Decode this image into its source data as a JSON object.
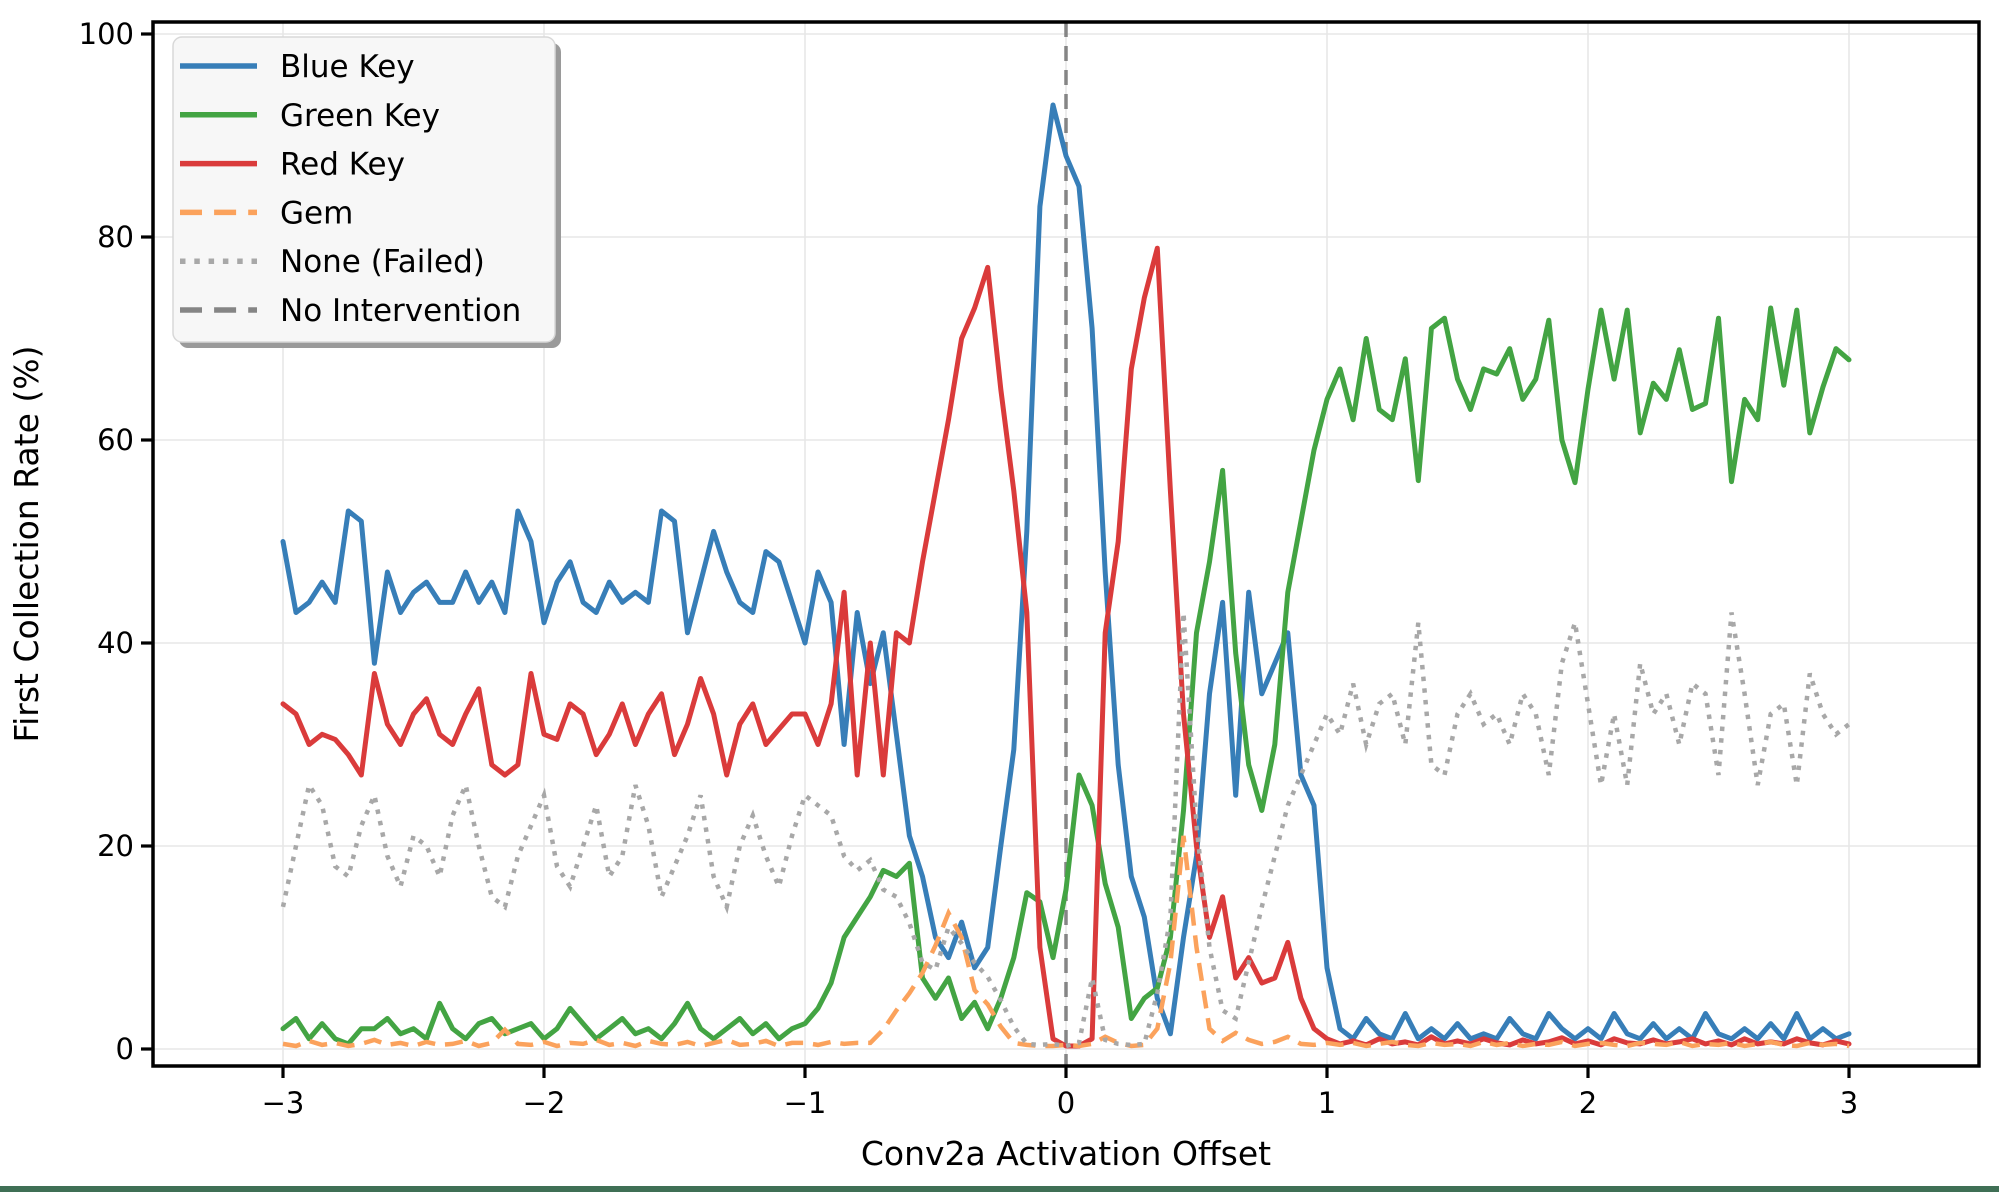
{
  "figure": {
    "background": "#ffffff",
    "footer_bar_color": "#3f6f55"
  },
  "chart_data": {
    "type": "line",
    "title": "",
    "xlabel": "Conv2a Activation Offset",
    "ylabel": "First Collection Rate (%)",
    "xlim": [
      -3.5,
      3.5
    ],
    "ylim": [
      -1.7,
      101.2
    ],
    "xticks": [
      -3,
      -2,
      -1,
      0,
      1,
      2,
      3
    ],
    "xtick_labels": [
      "−3",
      "−2",
      "−1",
      "0",
      "1",
      "2",
      "3"
    ],
    "yticks": [
      0,
      20,
      40,
      60,
      80,
      100
    ],
    "ytick_labels": [
      "0",
      "20",
      "40",
      "60",
      "80",
      "100"
    ],
    "grid": true,
    "grid_color": "#e7e7e7",
    "legend_position": "upper left",
    "legend_entries": [
      "Blue Key",
      "Green Key",
      "Red Key",
      "Gem",
      "None (Failed)",
      "No Intervention"
    ],
    "vline": {
      "x": 0,
      "label": "No Intervention",
      "color": "#858585",
      "style": "dashed"
    },
    "x": [
      -3,
      -2.95,
      -2.9,
      -2.85,
      -2.8,
      -2.75,
      -2.7,
      -2.65,
      -2.6,
      -2.55,
      -2.5,
      -2.45,
      -2.4,
      -2.35,
      -2.3,
      -2.25,
      -2.2,
      -2.15,
      -2.1,
      -2.05,
      -2,
      -1.95,
      -1.9,
      -1.85,
      -1.8,
      -1.75,
      -1.7,
      -1.65,
      -1.6,
      -1.55,
      -1.5,
      -1.45,
      -1.4,
      -1.35,
      -1.3,
      -1.25,
      -1.2,
      -1.15,
      -1.1,
      -1.05,
      -1,
      -0.95,
      -0.9,
      -0.85,
      -0.8,
      -0.75,
      -0.7,
      -0.65,
      -0.6,
      -0.55,
      -0.5,
      -0.45,
      -0.4,
      -0.35,
      -0.3,
      -0.25,
      -0.2,
      -0.15,
      -0.1,
      -0.05,
      0,
      0.05,
      0.1,
      0.15,
      0.2,
      0.25,
      0.3,
      0.35,
      0.4,
      0.45,
      0.5,
      0.55,
      0.6,
      0.65,
      0.7,
      0.75,
      0.8,
      0.85,
      0.9,
      0.95,
      1,
      1.05,
      1.1,
      1.15,
      1.2,
      1.25,
      1.3,
      1.35,
      1.4,
      1.45,
      1.5,
      1.55,
      1.6,
      1.65,
      1.7,
      1.75,
      1.8,
      1.85,
      1.9,
      1.95,
      2,
      2.05,
      2.1,
      2.15,
      2.2,
      2.25,
      2.3,
      2.35,
      2.4,
      2.45,
      2.5,
      2.55,
      2.6,
      2.65,
      2.7,
      2.75,
      2.8,
      2.85,
      2.9,
      2.95,
      3
    ],
    "series": [
      {
        "name": "Blue Key",
        "color": "#377eb8",
        "style": "solid",
        "values": [
          50,
          43,
          44,
          46,
          44,
          53,
          52,
          38,
          47,
          43,
          45,
          46,
          44,
          44,
          47,
          44,
          46,
          43,
          53,
          50,
          42,
          46,
          48,
          44,
          43,
          46,
          44,
          45,
          44,
          53,
          52,
          41,
          46,
          51,
          47,
          44,
          43,
          49,
          48,
          44,
          40,
          47,
          44,
          30,
          43,
          36,
          41,
          31,
          21,
          17,
          11,
          9,
          12.5,
          8,
          10,
          20,
          29.5,
          51,
          83,
          93,
          88,
          85,
          71,
          47,
          28,
          17,
          13,
          5,
          1.5,
          11,
          19,
          35,
          44,
          25,
          45,
          35,
          38,
          41,
          27,
          24,
          8,
          2,
          1,
          3,
          1.5,
          1,
          3.5,
          1,
          2,
          1,
          2.5,
          1,
          1.5,
          1,
          3,
          1.5,
          1,
          3.5,
          2,
          1,
          2,
          1,
          3.5,
          1.5,
          1,
          2.5,
          1,
          2,
          1,
          3.5,
          1.5,
          1,
          2,
          1,
          2.5,
          1,
          3.5,
          1,
          2,
          1,
          1.5
        ]
      },
      {
        "name": "Green Key",
        "color": "#43a443",
        "style": "solid",
        "values": [
          2,
          3,
          1,
          2.5,
          1,
          0.5,
          2,
          2,
          3,
          1.5,
          2,
          1,
          4.5,
          2,
          1,
          2.5,
          3,
          1.5,
          2,
          2.5,
          1,
          2,
          4,
          2.5,
          1,
          2,
          3,
          1.5,
          2,
          1,
          2.5,
          4.5,
          2,
          1,
          2,
          3,
          1.5,
          2.5,
          1,
          2,
          2.5,
          4,
          6.5,
          11,
          13,
          15,
          17.6,
          17,
          18.3,
          7,
          5,
          7,
          3,
          4.6,
          2,
          5,
          9,
          15.4,
          14.5,
          9,
          15.7,
          27,
          24,
          16.3,
          12,
          3,
          5,
          6,
          11,
          23.5,
          41,
          48,
          57,
          39,
          28,
          23.5,
          30,
          45,
          52,
          59,
          64,
          67,
          62,
          70,
          63,
          62,
          68,
          56,
          71,
          72,
          66,
          63,
          67,
          66.5,
          69,
          64,
          66,
          71.8,
          60,
          55.8,
          65,
          72.8,
          66,
          72.8,
          60.7,
          65.6,
          64,
          68.9,
          63,
          63.6,
          72,
          55.9,
          64,
          62,
          73,
          65.4,
          72.8,
          60.7,
          65.2,
          69,
          67.9
        ]
      },
      {
        "name": "Red Key",
        "color": "#da3b3b",
        "style": "solid",
        "values": [
          34,
          33,
          30,
          31,
          30.5,
          29,
          27,
          37,
          32,
          30,
          33,
          34.5,
          31,
          30,
          33,
          35.5,
          28,
          27,
          28,
          37,
          31,
          30.5,
          34,
          33,
          29,
          31,
          34,
          30,
          33,
          35,
          29,
          32,
          36.5,
          33,
          27,
          32,
          34,
          30,
          31.5,
          33,
          33,
          30,
          34,
          45,
          27,
          40,
          27,
          41,
          40,
          48,
          55,
          62,
          70,
          73,
          77,
          65,
          55,
          43,
          10,
          1,
          0.3,
          0.3,
          1,
          41,
          50,
          67,
          74,
          78.9,
          55,
          33,
          20,
          11,
          15,
          7,
          9,
          6.5,
          7,
          10.5,
          5,
          2,
          1,
          0.5,
          0.8,
          0.4,
          1,
          0.5,
          0.7,
          0.4,
          1.2,
          0.5,
          0.8,
          0.5,
          1,
          0.6,
          0.4,
          0.9,
          0.5,
          0.7,
          1.1,
          0.5,
          0.8,
          0.4,
          1,
          0.6,
          0.5,
          0.9,
          0.5,
          0.7,
          1,
          0.5,
          0.8,
          0.4,
          1,
          0.5,
          0.7,
          0.5,
          1,
          0.6,
          0.4,
          0.8,
          0.5
        ]
      },
      {
        "name": "Gem",
        "color": "#fba25c",
        "style": "dashed",
        "values": [
          0.5,
          0.3,
          0.8,
          0.4,
          0.6,
          0.3,
          0.5,
          0.9,
          0.4,
          0.6,
          0.3,
          0.7,
          0.4,
          0.5,
          0.8,
          0.3,
          0.6,
          1.9,
          0.5,
          0.4,
          0.7,
          0.3,
          0.6,
          0.5,
          0.9,
          0.4,
          0.6,
          0.3,
          0.8,
          0.5,
          0.4,
          0.7,
          0.3,
          0.6,
          0.9,
          0.4,
          0.5,
          0.8,
          0.3,
          0.6,
          0.6,
          0.4,
          0.7,
          0.5,
          0.6,
          0.6,
          1.9,
          3.8,
          5.5,
          7.5,
          10.2,
          13.4,
          11,
          5.8,
          4.4,
          2.2,
          0.6,
          0.4,
          0.3,
          0.3,
          0.4,
          0.3,
          0.5,
          1.2,
          0.6,
          0.3,
          0.4,
          2,
          8.5,
          21,
          10,
          2,
          0.8,
          1.6,
          0.9,
          0.5,
          0.7,
          1.2,
          0.5,
          0.4,
          0.6,
          0.4,
          0.6,
          0.3,
          0.5,
          0.7,
          0.4,
          0.3,
          0.6,
          0.4,
          0.5,
          0.3,
          0.7,
          0.4,
          0.6,
          0.3,
          0.5,
          0.4,
          0.7,
          0.3,
          0.5,
          0.6,
          0.4,
          0.3,
          0.6,
          0.5,
          0.4,
          0.7,
          0.3,
          0.5,
          0.4,
          0.6,
          0.3,
          0.5,
          0.7,
          0.4,
          0.3,
          0.6,
          0.4,
          0.5,
          0.3
        ]
      },
      {
        "name": "None (Failed)",
        "color": "#a8a8a8",
        "style": "dotted",
        "values": [
          14,
          20,
          26,
          24,
          18,
          17,
          22,
          25,
          19,
          16,
          21,
          20,
          17,
          23,
          26,
          20,
          15,
          14,
          19,
          22,
          25,
          18,
          16,
          20,
          24,
          17,
          19,
          26,
          22,
          15,
          18,
          21,
          25,
          17,
          14,
          20,
          23,
          19,
          16,
          21,
          25,
          24,
          23,
          19,
          17.6,
          18.6,
          15.7,
          15,
          12.4,
          8.5,
          7.8,
          12,
          10.4,
          8.5,
          7.1,
          4.8,
          2.2,
          0.5,
          0.4,
          0.5,
          0.3,
          0.6,
          7,
          0.9,
          0.5,
          0.4,
          0.5,
          5.5,
          13,
          43,
          22,
          10,
          3.8,
          3,
          8.5,
          14,
          19,
          24,
          27,
          30,
          33,
          31,
          36,
          30,
          34,
          35,
          30,
          42,
          28,
          27,
          33,
          35,
          32,
          33,
          30,
          35,
          33,
          27,
          38,
          42,
          34,
          26,
          33,
          26,
          38,
          33,
          35,
          30,
          36,
          35,
          27,
          43,
          35,
          26,
          33,
          34,
          26,
          37,
          33,
          31,
          32
        ]
      }
    ]
  }
}
